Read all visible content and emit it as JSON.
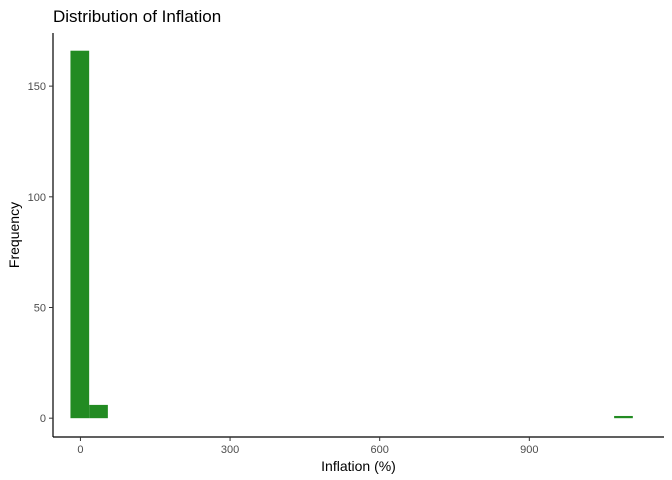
{
  "chart_data": {
    "type": "bar",
    "title": "Distribution of Inflation",
    "xlabel": "Inflation (%)",
    "ylabel": "Frequency",
    "xlim": [
      -55,
      1170
    ],
    "ylim": [
      -8.5,
      174
    ],
    "x_ticks": [
      0,
      300,
      600,
      900
    ],
    "y_ticks": [
      0,
      50,
      100,
      150
    ],
    "x_tick_labels": [
      "0",
      "300",
      "600",
      "900"
    ],
    "y_tick_labels": [
      "0",
      "50",
      "100",
      "150"
    ],
    "bin_width": 37.5,
    "bars": [
      {
        "x_start": -20,
        "x_end": 17.5,
        "count": 166
      },
      {
        "x_start": 17.5,
        "x_end": 55,
        "count": 6
      },
      {
        "x_start": 1070,
        "x_end": 1107.5,
        "count": 1
      }
    ],
    "bar_color": "#228B22",
    "grid": false,
    "legend": "none"
  }
}
